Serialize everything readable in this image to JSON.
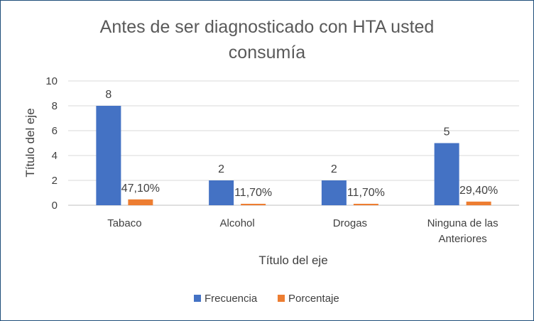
{
  "chart_data": {
    "type": "bar",
    "title_lines": [
      "Antes de ser diagnosticado con HTA usted",
      "consumía"
    ],
    "xlabel": "Título del eje",
    "ylabel": "Título del eje",
    "categories": [
      [
        "Tabaco"
      ],
      [
        "Alcohol"
      ],
      [
        "Drogas"
      ],
      [
        "Ninguna de las",
        "Anteriores"
      ]
    ],
    "series": [
      {
        "name": "Frecuencia",
        "color": "#4472c4",
        "values": [
          8,
          2,
          2,
          5
        ],
        "labels": [
          "8",
          "2",
          "2",
          "5"
        ]
      },
      {
        "name": "Porcentaje",
        "color": "#ed7d31",
        "values": [
          0.471,
          0.117,
          0.117,
          0.294
        ],
        "labels": [
          "47,10%",
          "11,70%",
          "11,70%",
          "29,40%"
        ]
      }
    ],
    "ylim": [
      0,
      10
    ],
    "yticks": [
      0,
      2,
      4,
      6,
      8,
      10
    ],
    "grid": true,
    "legend_position": "bottom"
  }
}
